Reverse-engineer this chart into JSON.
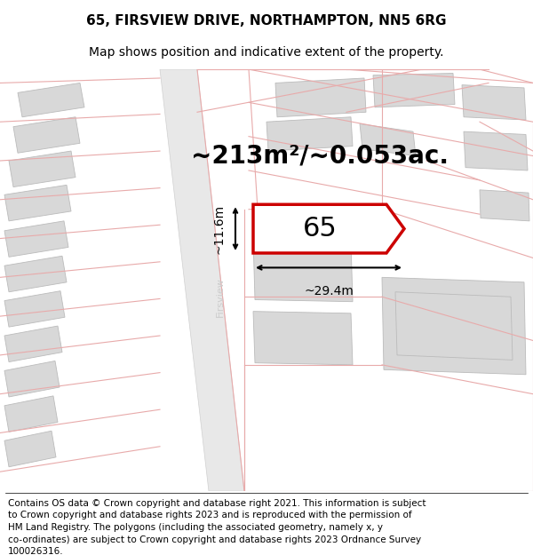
{
  "title_line1": "65, FIRSVIEW DRIVE, NORTHAMPTON, NN5 6RG",
  "title_line2": "Map shows position and indicative extent of the property.",
  "area_label": "~213m²/~0.053ac.",
  "property_label": "65",
  "width_label": "~29.4m",
  "height_label": "~11.6m",
  "street_label": "Firsview",
  "footer_lines": [
    "Contains OS data © Crown copyright and database right 2021. This information is subject",
    "to Crown copyright and database rights 2023 and is reproduced with the permission of",
    "HM Land Registry. The polygons (including the associated geometry, namely x, y",
    "co-ordinates) are subject to Crown copyright and database rights 2023 Ordnance Survey",
    "100026316."
  ],
  "bg_color": "#ffffff",
  "map_bg": "#f8f8f8",
  "property_fill": "#ffffff",
  "property_edge": "#cc0000",
  "neighbor_fill": "#d8d8d8",
  "neighbor_edge": "#bbbbbb",
  "plot_line_color": "#e8aaaa",
  "dim_color": "#000000",
  "text_color": "#000000",
  "street_text_color": "#cccccc",
  "title_fontsize": 11,
  "subtitle_fontsize": 10,
  "area_fontsize": 20,
  "prop_label_fontsize": 22,
  "dim_fontsize": 10,
  "footer_fontsize": 7.5
}
